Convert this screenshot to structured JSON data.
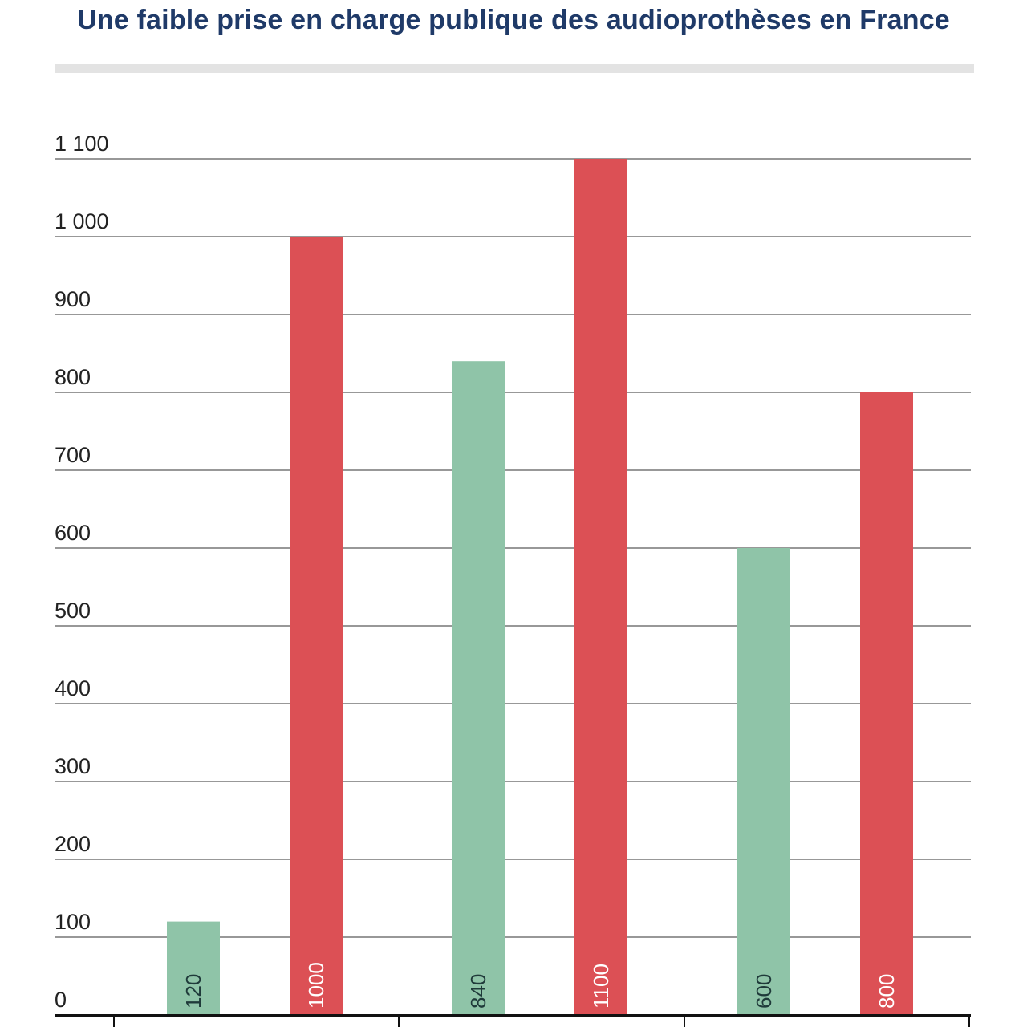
{
  "title": "Une faible prise en charge publique des audioprothèses en France",
  "colors": {
    "green": "#8fc4a8",
    "red": "#dc5055",
    "grid": "#777777",
    "axis": "#111111",
    "title": "#1f3a68"
  },
  "chart_data": {
    "type": "bar",
    "title": "Une faible prise en charge publique des audioprothèses en France",
    "xlabel": "",
    "ylabel": "",
    "ylim": [
      0,
      1100
    ],
    "y_ticks": [
      0,
      100,
      200,
      300,
      400,
      500,
      600,
      700,
      800,
      900,
      1000,
      1100
    ],
    "y_tick_labels": [
      "0",
      "100",
      "200",
      "300",
      "400",
      "500",
      "600",
      "700",
      "800",
      "900",
      "1 000",
      "1 100"
    ],
    "grid": true,
    "legend": "none",
    "categories": [
      "",
      "",
      ""
    ],
    "series": [
      {
        "values": [
          120,
          840,
          600
        ],
        "labels": [
          "120",
          "840",
          "600"
        ],
        "color": "#8fc4a8"
      },
      {
        "values": [
          1000,
          1100,
          800
        ],
        "labels": [
          "1000",
          "1100",
          "800"
        ],
        "color": "#dc5055"
      }
    ]
  }
}
